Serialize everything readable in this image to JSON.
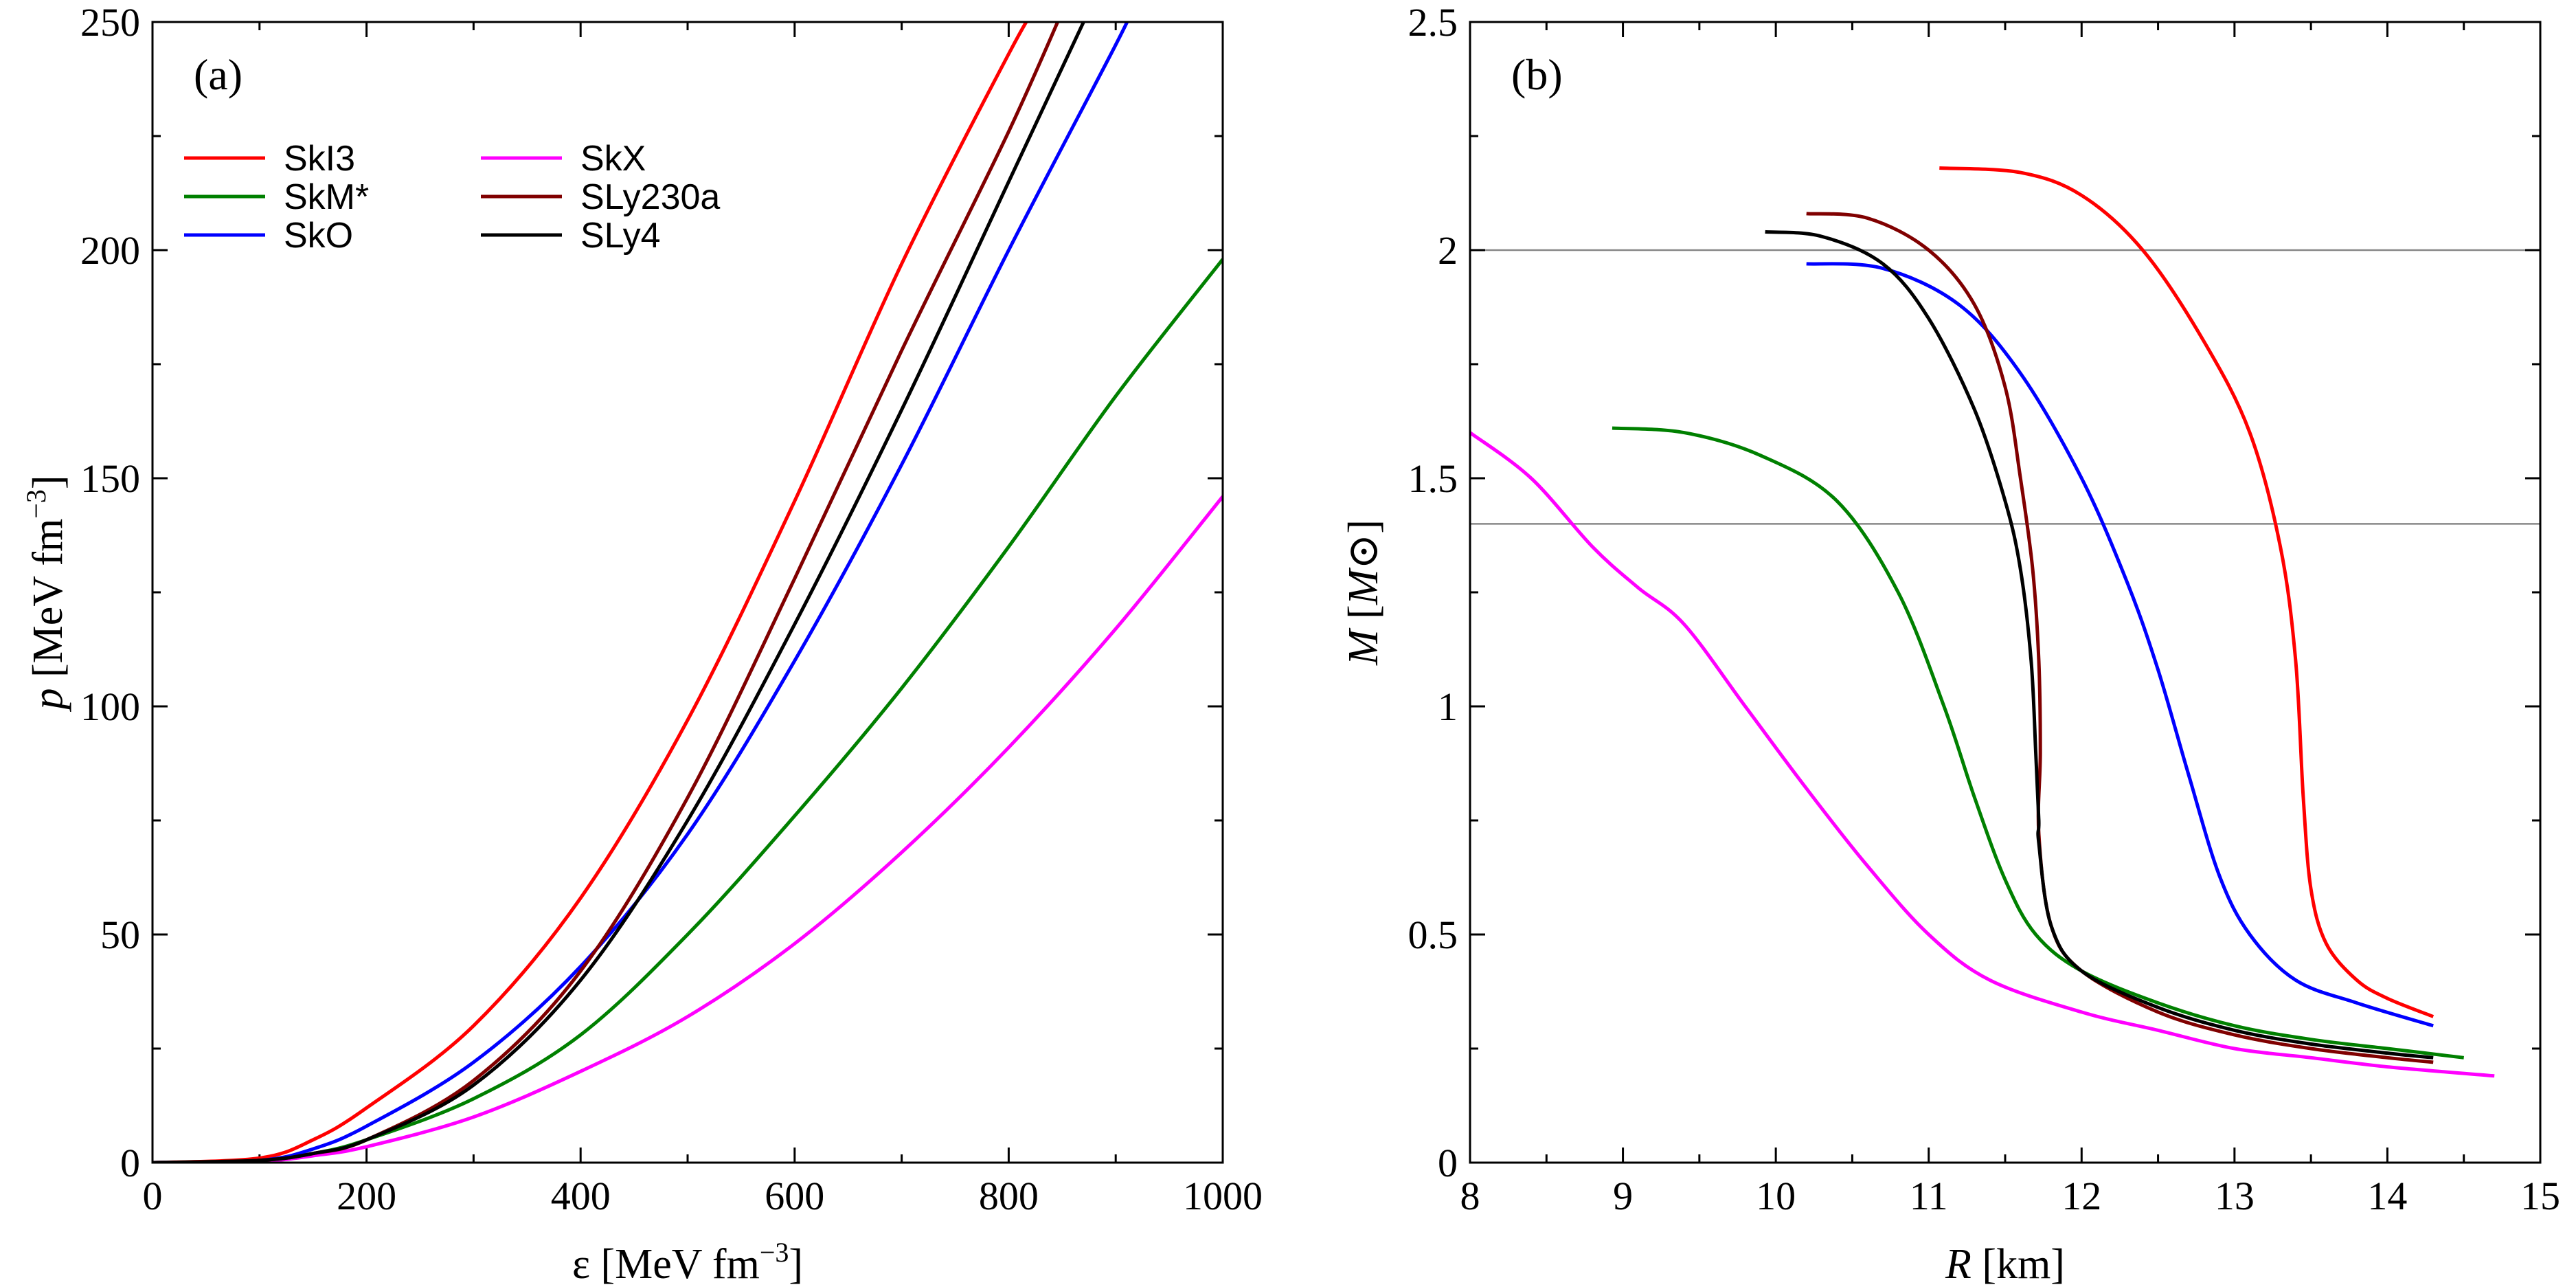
{
  "chart_data": [
    {
      "panel": "(a)",
      "type": "line",
      "xlabel": "ε [MeV fm⁻³]",
      "xlabel_main": "ε [MeV fm",
      "xlabel_sup": "−3",
      "xlabel_end": "]",
      "ylabel_italic": "p",
      "ylabel_main": " [MeV fm",
      "ylabel_sup": "−3",
      "ylabel_end": "]",
      "xlim": [
        0,
        1000
      ],
      "ylim": [
        0,
        250
      ],
      "xticks": [
        0,
        200,
        400,
        600,
        800,
        1000
      ],
      "yticks": [
        0,
        50,
        100,
        150,
        200,
        250
      ],
      "grid": false,
      "legend_position": "top-left",
      "series": [
        {
          "name": "SkI3",
          "color": "#ff0000",
          "x": [
            0,
            100,
            150,
            200,
            300,
            400,
            500,
            600,
            700,
            800,
            830
          ],
          "y": [
            0,
            1,
            5,
            12,
            30,
            58,
            97,
            145,
            197,
            243,
            255
          ]
        },
        {
          "name": "SkM*",
          "color": "#008000",
          "x": [
            0,
            100,
            150,
            200,
            300,
            400,
            500,
            600,
            700,
            800,
            900,
            1000
          ],
          "y": [
            0,
            0.5,
            2,
            5,
            14,
            28,
            50,
            76,
            104,
            135,
            168,
            198
          ]
        },
        {
          "name": "SkO",
          "color": "#0000ff",
          "x": [
            0,
            100,
            150,
            200,
            300,
            400,
            500,
            600,
            700,
            800,
            900,
            920
          ],
          "y": [
            0,
            0.5,
            3,
            8,
            22,
            43,
            72,
            110,
            153,
            200,
            245,
            255
          ]
        },
        {
          "name": "SkX",
          "color": "#ff00ff",
          "x": [
            0,
            100,
            150,
            200,
            300,
            400,
            500,
            600,
            700,
            800,
            900,
            1000
          ],
          "y": [
            0,
            0.3,
            1.5,
            3.5,
            10,
            20,
            32,
            48,
            68,
            91,
            117,
            146
          ]
        },
        {
          "name": "SLy230a",
          "color": "#800000",
          "x": [
            0,
            100,
            150,
            200,
            300,
            400,
            500,
            600,
            700,
            800,
            855
          ],
          "y": [
            0,
            0.5,
            2,
            5,
            18,
            42,
            80,
            128,
            178,
            226,
            255
          ]
        },
        {
          "name": "SLy4",
          "color": "#000000",
          "x": [
            0,
            100,
            150,
            200,
            300,
            400,
            500,
            600,
            700,
            800,
            880
          ],
          "y": [
            0,
            0.5,
            2,
            5,
            17,
            40,
            75,
            118,
            165,
            215,
            255
          ]
        }
      ]
    },
    {
      "panel": "(b)",
      "type": "line",
      "xlabel_italic": "R",
      "xlabel_main": " [km]",
      "ylabel_italic": "M",
      "ylabel_main": " [",
      "ylabel_sub_italic": "M",
      "ylabel_sun": "⊙",
      "ylabel_end": "]",
      "xlim": [
        8,
        15
      ],
      "ylim": [
        0,
        2.5
      ],
      "xticks": [
        8,
        9,
        10,
        11,
        12,
        13,
        14,
        15
      ],
      "yticks": [
        0,
        0.5,
        1,
        1.5,
        2,
        2.5
      ],
      "ytick_labels": [
        "0",
        "0.5",
        "1",
        "1.5",
        "2",
        "2.5"
      ],
      "hlines": [
        2.0,
        1.4
      ],
      "hline_color": "#888888",
      "grid": false,
      "series": [
        {
          "name": "SkI3",
          "color": "#ff0000",
          "x": [
            11.07,
            11.6,
            12.0,
            12.4,
            12.8,
            13.1,
            13.3,
            13.4,
            13.45,
            13.5,
            13.6,
            13.8,
            14.0,
            14.3
          ],
          "y": [
            2.18,
            2.17,
            2.12,
            2.0,
            1.8,
            1.6,
            1.35,
            1.1,
            0.8,
            0.6,
            0.48,
            0.4,
            0.36,
            0.32
          ]
        },
        {
          "name": "SkM*",
          "color": "#008000",
          "x": [
            8.93,
            9.4,
            9.9,
            10.4,
            10.8,
            11.1,
            11.3,
            11.5,
            11.7,
            12.0,
            12.5,
            13.0,
            13.5,
            14.0,
            14.5
          ],
          "y": [
            1.61,
            1.6,
            1.55,
            1.45,
            1.25,
            1.0,
            0.8,
            0.62,
            0.5,
            0.42,
            0.35,
            0.3,
            0.27,
            0.25,
            0.23
          ]
        },
        {
          "name": "SkO",
          "color": "#0000ff",
          "x": [
            10.2,
            10.7,
            11.2,
            11.6,
            12.0,
            12.3,
            12.5,
            12.7,
            12.9,
            13.1,
            13.4,
            13.8,
            14.3
          ],
          "y": [
            1.97,
            1.96,
            1.88,
            1.73,
            1.5,
            1.27,
            1.08,
            0.85,
            0.63,
            0.5,
            0.4,
            0.35,
            0.3
          ]
        },
        {
          "name": "SkX",
          "color": "#ff00ff",
          "x": [
            8.0,
            8.4,
            8.8,
            9.1,
            9.4,
            9.8,
            10.2,
            10.6,
            11.0,
            11.4,
            12.0,
            12.5,
            13.0,
            13.5,
            14.0,
            14.7
          ],
          "y": [
            1.6,
            1.5,
            1.35,
            1.26,
            1.18,
            1.0,
            0.82,
            0.65,
            0.5,
            0.4,
            0.33,
            0.29,
            0.25,
            0.23,
            0.21,
            0.19
          ]
        },
        {
          "name": "SLy230a",
          "color": "#800000",
          "x": [
            10.2,
            10.6,
            11.0,
            11.3,
            11.5,
            11.6,
            11.68,
            11.72,
            11.73,
            11.72,
            11.8,
            12.0,
            12.5,
            13.0,
            13.5,
            14.0,
            14.3
          ],
          "y": [
            2.08,
            2.07,
            2.0,
            1.88,
            1.7,
            1.5,
            1.3,
            1.1,
            0.9,
            0.72,
            0.52,
            0.42,
            0.33,
            0.28,
            0.25,
            0.23,
            0.22
          ]
        },
        {
          "name": "SLy4",
          "color": "#000000",
          "x": [
            9.93,
            10.3,
            10.7,
            11.0,
            11.3,
            11.5,
            11.6,
            11.67,
            11.7,
            11.72,
            11.72,
            11.8,
            12.0,
            12.5,
            13.0,
            13.5,
            14.0,
            14.3
          ],
          "y": [
            2.04,
            2.03,
            1.97,
            1.85,
            1.65,
            1.45,
            1.3,
            1.1,
            0.9,
            0.75,
            0.7,
            0.52,
            0.42,
            0.34,
            0.29,
            0.26,
            0.24,
            0.23
          ]
        }
      ]
    }
  ]
}
